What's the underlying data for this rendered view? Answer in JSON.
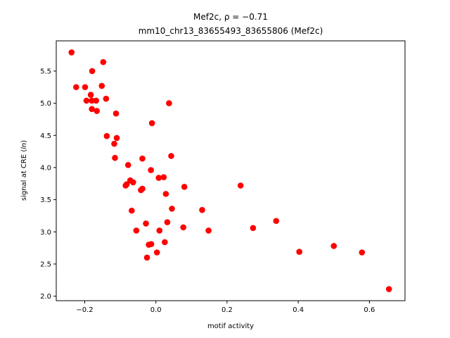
{
  "chart_data": {
    "type": "scatter",
    "title": "Mef2c, ρ = −0.71",
    "subtitle": "mm10_chr13_83655493_83655806 (Mef2c)",
    "xlabel": "motif activity",
    "ylabel_prefix": "signal at CRE (",
    "ylabel_italic": "ln",
    "ylabel_suffix": ")",
    "xlim": [
      -0.28,
      0.7
    ],
    "ylim": [
      1.93,
      5.97
    ],
    "xticks": [
      -0.2,
      0.0,
      0.2,
      0.4,
      0.6
    ],
    "xtick_labels": [
      "−0.2",
      "0.0",
      "0.2",
      "0.4",
      "0.6"
    ],
    "yticks": [
      2.0,
      2.5,
      3.0,
      3.5,
      4.0,
      4.5,
      5.0,
      5.5
    ],
    "ytick_labels": [
      "2.0",
      "2.5",
      "3.0",
      "3.5",
      "4.0",
      "4.5",
      "5.0",
      "5.5"
    ],
    "grid": false,
    "marker_color": "#ff0000",
    "points": [
      {
        "x": -0.237,
        "y": 5.79
      },
      {
        "x": -0.224,
        "y": 5.25
      },
      {
        "x": -0.199,
        "y": 5.25
      },
      {
        "x": -0.195,
        "y": 5.04
      },
      {
        "x": -0.183,
        "y": 5.13
      },
      {
        "x": -0.18,
        "y": 5.04
      },
      {
        "x": -0.179,
        "y": 5.5
      },
      {
        "x": -0.18,
        "y": 4.91
      },
      {
        "x": -0.168,
        "y": 5.04
      },
      {
        "x": -0.166,
        "y": 4.88
      },
      {
        "x": -0.152,
        "y": 5.27
      },
      {
        "x": -0.148,
        "y": 5.64
      },
      {
        "x": -0.14,
        "y": 5.07
      },
      {
        "x": -0.138,
        "y": 4.49
      },
      {
        "x": -0.112,
        "y": 4.84
      },
      {
        "x": -0.11,
        "y": 4.46
      },
      {
        "x": -0.117,
        "y": 4.37
      },
      {
        "x": -0.115,
        "y": 4.15
      },
      {
        "x": -0.085,
        "y": 3.72
      },
      {
        "x": -0.082,
        "y": 3.74
      },
      {
        "x": -0.078,
        "y": 4.04
      },
      {
        "x": -0.072,
        "y": 3.8
      },
      {
        "x": -0.064,
        "y": 3.77
      },
      {
        "x": -0.068,
        "y": 3.33
      },
      {
        "x": -0.055,
        "y": 3.02
      },
      {
        "x": -0.042,
        "y": 3.65
      },
      {
        "x": -0.038,
        "y": 3.67
      },
      {
        "x": -0.038,
        "y": 4.14
      },
      {
        "x": -0.028,
        "y": 3.13
      },
      {
        "x": -0.025,
        "y": 2.6
      },
      {
        "x": -0.02,
        "y": 2.8
      },
      {
        "x": -0.013,
        "y": 2.81
      },
      {
        "x": -0.014,
        "y": 3.96
      },
      {
        "x": -0.011,
        "y": 4.69
      },
      {
        "x": 0.003,
        "y": 2.68
      },
      {
        "x": 0.008,
        "y": 3.84
      },
      {
        "x": 0.01,
        "y": 3.02
      },
      {
        "x": 0.022,
        "y": 3.85
      },
      {
        "x": 0.025,
        "y": 2.84
      },
      {
        "x": 0.028,
        "y": 3.59
      },
      {
        "x": 0.032,
        "y": 3.15
      },
      {
        "x": 0.037,
        "y": 5.0
      },
      {
        "x": 0.043,
        "y": 4.18
      },
      {
        "x": 0.045,
        "y": 3.36
      },
      {
        "x": 0.077,
        "y": 3.07
      },
      {
        "x": 0.08,
        "y": 3.7
      },
      {
        "x": 0.13,
        "y": 3.34
      },
      {
        "x": 0.148,
        "y": 3.02
      },
      {
        "x": 0.238,
        "y": 3.72
      },
      {
        "x": 0.273,
        "y": 3.06
      },
      {
        "x": 0.338,
        "y": 3.17
      },
      {
        "x": 0.403,
        "y": 2.69
      },
      {
        "x": 0.5,
        "y": 2.78
      },
      {
        "x": 0.579,
        "y": 2.68
      },
      {
        "x": 0.655,
        "y": 2.11
      }
    ]
  }
}
